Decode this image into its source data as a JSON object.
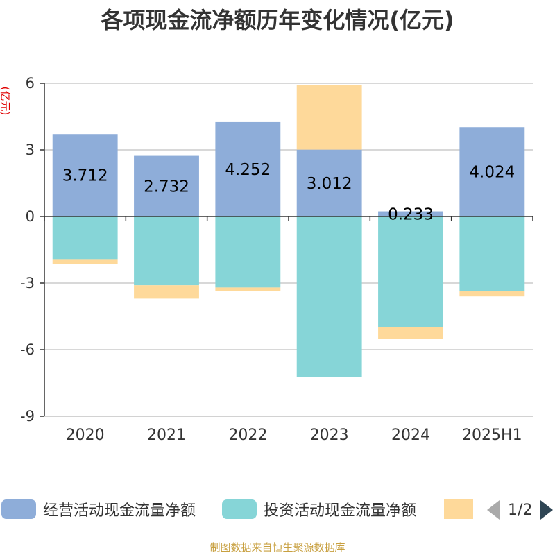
{
  "title": "各项现金流净额历年变化情况(亿元)",
  "source_note": "制图数据来自恒生聚源数据库",
  "colors": {
    "operating": "#8eadd9",
    "investing": "#86d5d7",
    "financing": "#fed99a",
    "axis": "#333333",
    "grid": "#cccccc",
    "label": "#000000"
  },
  "legend": {
    "items": [
      {
        "label": "经营活动现金流量净额",
        "color": "#8eadd9"
      },
      {
        "label": "投资活动现金流量净额",
        "color": "#86d5d7"
      },
      {
        "label": "",
        "color": "#fed99a"
      }
    ],
    "page_text": "1/2"
  },
  "chart_data": {
    "type": "bar",
    "stacked": true,
    "categories": [
      "2020",
      "2021",
      "2022",
      "2023",
      "2024",
      "2025H1"
    ],
    "series": [
      {
        "name": "经营活动现金流量净额",
        "values": [
          3.712,
          2.732,
          4.252,
          3.012,
          0.233,
          4.024
        ],
        "show_labels": true
      },
      {
        "name": "投资活动现金流量净额",
        "values": [
          -1.95,
          -3.1,
          -3.2,
          -7.25,
          -5.0,
          -3.35
        ],
        "show_labels": false
      },
      {
        "values": [
          -0.2,
          -0.6,
          -0.15,
          2.9,
          -0.5,
          -0.25
        ],
        "show_labels": false
      }
    ],
    "ylabel": "(亿元)",
    "ylim": [
      -9,
      6
    ],
    "yticks": [
      6,
      3,
      0,
      -3,
      -6,
      -9
    ],
    "grid": true,
    "legend_position": "bottom"
  }
}
